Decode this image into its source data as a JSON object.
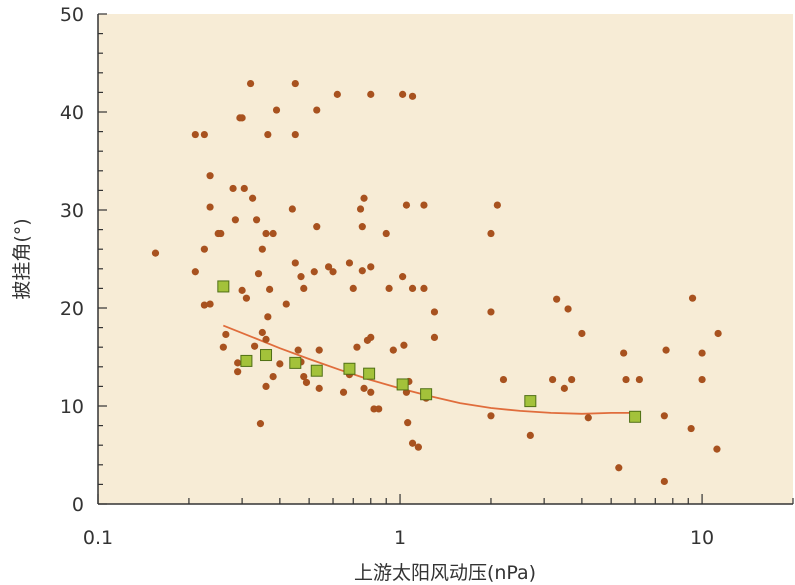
{
  "chart_data": {
    "type": "scatter",
    "title": "",
    "xlabel": "上游太阳风动压(nPa)",
    "ylabel": "披挂角(°)",
    "x_scale": "log",
    "xlim": [
      0.1,
      20
    ],
    "ylim": [
      0,
      50
    ],
    "x_ticks": [
      {
        "value": 0.1,
        "label": "0.1"
      },
      {
        "value": 1,
        "label": "1"
      },
      {
        "value": 10,
        "label": "10"
      }
    ],
    "y_ticks": [
      {
        "value": 0,
        "label": "0"
      },
      {
        "value": 10,
        "label": "10"
      },
      {
        "value": 20,
        "label": "20"
      },
      {
        "value": 30,
        "label": "30"
      },
      {
        "value": 40,
        "label": "40"
      },
      {
        "value": 50,
        "label": "50"
      }
    ],
    "grid": false,
    "plot_background": "#f7ecd6",
    "series": [
      {
        "kind": "points",
        "color": "#a8521f",
        "points": [
          [
            0.155,
            25.6
          ],
          [
            0.21,
            37.7
          ],
          [
            0.21,
            23.7
          ],
          [
            0.225,
            37.7
          ],
          [
            0.225,
            26.0
          ],
          [
            0.225,
            20.3
          ],
          [
            0.235,
            33.5
          ],
          [
            0.235,
            30.3
          ],
          [
            0.235,
            20.4
          ],
          [
            0.25,
            27.6
          ],
          [
            0.255,
            27.6
          ],
          [
            0.26,
            16.0
          ],
          [
            0.265,
            17.3
          ],
          [
            0.28,
            32.2
          ],
          [
            0.285,
            29.0
          ],
          [
            0.29,
            13.5
          ],
          [
            0.29,
            14.4
          ],
          [
            0.295,
            39.4
          ],
          [
            0.3,
            39.4
          ],
          [
            0.3,
            21.8
          ],
          [
            0.305,
            32.2
          ],
          [
            0.31,
            21.0
          ],
          [
            0.315,
            14.5
          ],
          [
            0.32,
            42.9
          ],
          [
            0.325,
            31.2
          ],
          [
            0.33,
            16.1
          ],
          [
            0.335,
            29.0
          ],
          [
            0.34,
            23.5
          ],
          [
            0.345,
            8.2
          ],
          [
            0.35,
            26.0
          ],
          [
            0.35,
            17.5
          ],
          [
            0.36,
            27.6
          ],
          [
            0.36,
            16.8
          ],
          [
            0.36,
            12.0
          ],
          [
            0.365,
            37.7
          ],
          [
            0.365,
            19.1
          ],
          [
            0.37,
            21.9
          ],
          [
            0.38,
            27.6
          ],
          [
            0.38,
            13.0
          ],
          [
            0.39,
            40.2
          ],
          [
            0.4,
            14.3
          ],
          [
            0.42,
            20.4
          ],
          [
            0.44,
            30.1
          ],
          [
            0.45,
            42.9
          ],
          [
            0.45,
            37.7
          ],
          [
            0.45,
            24.6
          ],
          [
            0.46,
            15.7
          ],
          [
            0.47,
            23.2
          ],
          [
            0.47,
            14.5
          ],
          [
            0.48,
            22.0
          ],
          [
            0.48,
            13.0
          ],
          [
            0.49,
            12.4
          ],
          [
            0.52,
            23.7
          ],
          [
            0.53,
            40.2
          ],
          [
            0.53,
            28.3
          ],
          [
            0.54,
            15.7
          ],
          [
            0.54,
            11.8
          ],
          [
            0.58,
            24.2
          ],
          [
            0.6,
            23.7
          ],
          [
            0.62,
            41.8
          ],
          [
            0.65,
            11.4
          ],
          [
            0.68,
            24.6
          ],
          [
            0.68,
            13.2
          ],
          [
            0.7,
            22.0
          ],
          [
            0.72,
            16.0
          ],
          [
            0.74,
            30.1
          ],
          [
            0.75,
            23.8
          ],
          [
            0.75,
            28.3
          ],
          [
            0.76,
            31.2
          ],
          [
            0.76,
            11.8
          ],
          [
            0.78,
            16.7
          ],
          [
            0.8,
            41.8
          ],
          [
            0.8,
            24.2
          ],
          [
            0.8,
            17.0
          ],
          [
            0.8,
            11.4
          ],
          [
            0.82,
            9.7
          ],
          [
            0.85,
            9.7
          ],
          [
            0.9,
            27.6
          ],
          [
            0.92,
            22.0
          ],
          [
            0.95,
            15.7
          ],
          [
            1.02,
            41.8
          ],
          [
            1.02,
            23.2
          ],
          [
            1.03,
            16.2
          ],
          [
            1.05,
            30.5
          ],
          [
            1.05,
            11.4
          ],
          [
            1.06,
            8.3
          ],
          [
            1.07,
            12.5
          ],
          [
            1.1,
            41.6
          ],
          [
            1.1,
            22.0
          ],
          [
            1.1,
            6.2
          ],
          [
            1.15,
            5.8
          ],
          [
            1.2,
            30.5
          ],
          [
            1.2,
            22.0
          ],
          [
            1.22,
            10.8
          ],
          [
            1.3,
            19.6
          ],
          [
            1.3,
            17.0
          ],
          [
            2.0,
            27.6
          ],
          [
            2.0,
            19.6
          ],
          [
            2.0,
            9.0
          ],
          [
            2.1,
            30.5
          ],
          [
            2.2,
            12.7
          ],
          [
            2.7,
            7.0
          ],
          [
            3.2,
            12.7
          ],
          [
            3.3,
            20.9
          ],
          [
            3.5,
            11.8
          ],
          [
            3.6,
            19.9
          ],
          [
            3.7,
            12.7
          ],
          [
            4.0,
            17.4
          ],
          [
            4.2,
            8.8
          ],
          [
            5.3,
            3.7
          ],
          [
            5.5,
            15.4
          ],
          [
            5.6,
            12.7
          ],
          [
            6.0,
            9.0
          ],
          [
            6.2,
            12.7
          ],
          [
            7.5,
            2.3
          ],
          [
            7.5,
            9.0
          ],
          [
            7.6,
            15.7
          ],
          [
            9.2,
            7.7
          ],
          [
            9.3,
            21.0
          ],
          [
            10.0,
            15.4
          ],
          [
            10.0,
            12.7
          ],
          [
            11.2,
            5.6
          ],
          [
            11.3,
            17.4
          ]
        ]
      },
      {
        "kind": "squares",
        "color": "#a3c23a",
        "edge": "#4f6f15",
        "points": [
          [
            0.26,
            22.2
          ],
          [
            0.31,
            14.6
          ],
          [
            0.36,
            15.2
          ],
          [
            0.45,
            14.4
          ],
          [
            0.53,
            13.6
          ],
          [
            0.68,
            13.8
          ],
          [
            0.79,
            13.3
          ],
          [
            1.02,
            12.2
          ],
          [
            1.22,
            11.2
          ],
          [
            2.7,
            10.5
          ],
          [
            6.0,
            8.9
          ]
        ]
      },
      {
        "kind": "fit-line",
        "color": "#e06d3c",
        "points": [
          [
            0.26,
            18.2
          ],
          [
            0.32,
            17.1
          ],
          [
            0.4,
            15.9
          ],
          [
            0.5,
            14.8
          ],
          [
            0.63,
            13.7
          ],
          [
            0.79,
            12.7
          ],
          [
            1.0,
            11.8
          ],
          [
            1.26,
            11.0
          ],
          [
            1.58,
            10.3
          ],
          [
            2.0,
            9.8
          ],
          [
            2.5,
            9.5
          ],
          [
            3.16,
            9.3
          ],
          [
            4.0,
            9.2
          ],
          [
            5.0,
            9.3
          ],
          [
            6.0,
            9.3
          ]
        ]
      }
    ]
  }
}
